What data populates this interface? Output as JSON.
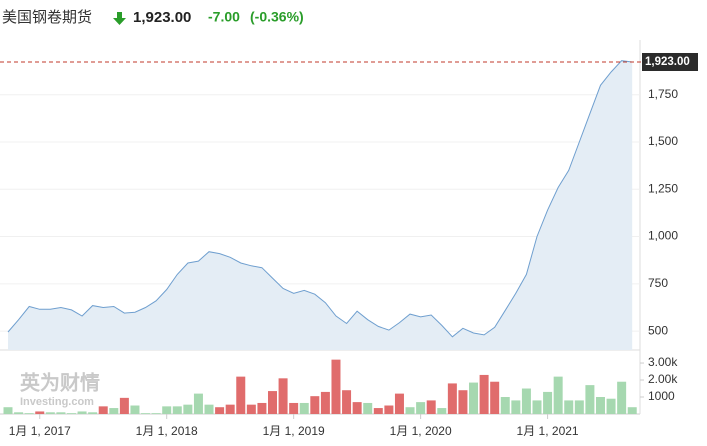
{
  "header": {
    "title": "美国钢卷期货",
    "price": "1,923.00",
    "change": "-7.00",
    "change_pct": "(-0.36%)"
  },
  "watermark": {
    "brand": "英为财情",
    "site": "Investing.com"
  },
  "chart_data": {
    "type": "area",
    "categories": [
      null,
      null,
      null,
      "1月 1, 2017",
      null,
      null,
      null,
      null,
      null,
      null,
      null,
      null,
      null,
      null,
      null,
      "1月 1, 2018",
      null,
      null,
      null,
      null,
      null,
      null,
      null,
      null,
      null,
      null,
      null,
      "1月 1, 2019",
      null,
      null,
      null,
      null,
      null,
      null,
      null,
      null,
      null,
      null,
      null,
      "1月 1, 2020",
      null,
      null,
      null,
      null,
      null,
      null,
      null,
      null,
      null,
      null,
      null,
      "1月 1, 2021",
      null,
      null,
      null,
      null,
      null,
      null,
      null,
      null
    ],
    "values": [
      495,
      560,
      630,
      615,
      615,
      625,
      612,
      580,
      635,
      625,
      630,
      595,
      600,
      625,
      660,
      720,
      800,
      860,
      870,
      920,
      910,
      890,
      860,
      845,
      835,
      780,
      725,
      700,
      715,
      695,
      650,
      580,
      540,
      605,
      560,
      525,
      505,
      545,
      590,
      575,
      585,
      530,
      470,
      515,
      490,
      480,
      520,
      610,
      700,
      800,
      1000,
      1140,
      1260,
      1350,
      1500,
      1650,
      1800,
      1870,
      1930,
      1923
    ],
    "color": "#6f9fcf",
    "fill": "#e4edf5",
    "ylim": [
      400,
      1960
    ],
    "yticks": [
      500,
      750,
      {
        "value": 1000,
        "label": "1,000"
      },
      {
        "value": 1250,
        "label": "1,250"
      },
      {
        "value": 1500,
        "label": "1,500"
      },
      {
        "value": 1750,
        "label": "1,750"
      }
    ],
    "grid": true,
    "last": {
      "value": 1923,
      "label": "1,923.00",
      "color": "#c0392b"
    },
    "volume": {
      "values": [
        400,
        100,
        50,
        150,
        100,
        100,
        50,
        150,
        100,
        450,
        350,
        950,
        500,
        50,
        50,
        450,
        450,
        550,
        1200,
        550,
        400,
        550,
        2200,
        550,
        650,
        1350,
        2100,
        650,
        650,
        1050,
        1300,
        3200,
        1400,
        700,
        650,
        350,
        500,
        1200,
        400,
        700,
        800,
        350,
        1800,
        1400,
        1850,
        2300,
        1900,
        1000,
        800,
        1500,
        800,
        1300,
        2200,
        800,
        800,
        1700,
        1000,
        900,
        1900,
        400
      ],
      "colors": [
        "#a6d8b0",
        "#a6d8b0",
        "#a6d8b0",
        "#e06c6c",
        "#a6d8b0",
        "#a6d8b0",
        "#a6d8b0",
        "#a6d8b0",
        "#a6d8b0",
        "#e06c6c",
        "#a6d8b0",
        "#e06c6c",
        "#a6d8b0",
        "#a6d8b0",
        "#a6d8b0",
        "#a6d8b0",
        "#a6d8b0",
        "#a6d8b0",
        "#a6d8b0",
        "#a6d8b0",
        "#e06c6c",
        "#e06c6c",
        "#e06c6c",
        "#e06c6c",
        "#e06c6c",
        "#e06c6c",
        "#e06c6c",
        "#e06c6c",
        "#a6d8b0",
        "#e06c6c",
        "#e06c6c",
        "#e06c6c",
        "#e06c6c",
        "#e06c6c",
        "#a6d8b0",
        "#e06c6c",
        "#e06c6c",
        "#e06c6c",
        "#a6d8b0",
        "#a6d8b0",
        "#e06c6c",
        "#a6d8b0",
        "#e06c6c",
        "#e06c6c",
        "#a6d8b0",
        "#e06c6c",
        "#e06c6c",
        "#a6d8b0",
        "#a6d8b0",
        "#a6d8b0",
        "#a6d8b0",
        "#a6d8b0",
        "#a6d8b0",
        "#a6d8b0",
        "#a6d8b0",
        "#a6d8b0",
        "#a6d8b0",
        "#a6d8b0",
        "#a6d8b0",
        "#a6d8b0"
      ],
      "ylim": [
        0,
        3650
      ],
      "yticks": [
        1000,
        {
          "value": 2000,
          "label": "2.00k"
        },
        {
          "value": 3000,
          "label": "3.00k"
        }
      ]
    }
  }
}
